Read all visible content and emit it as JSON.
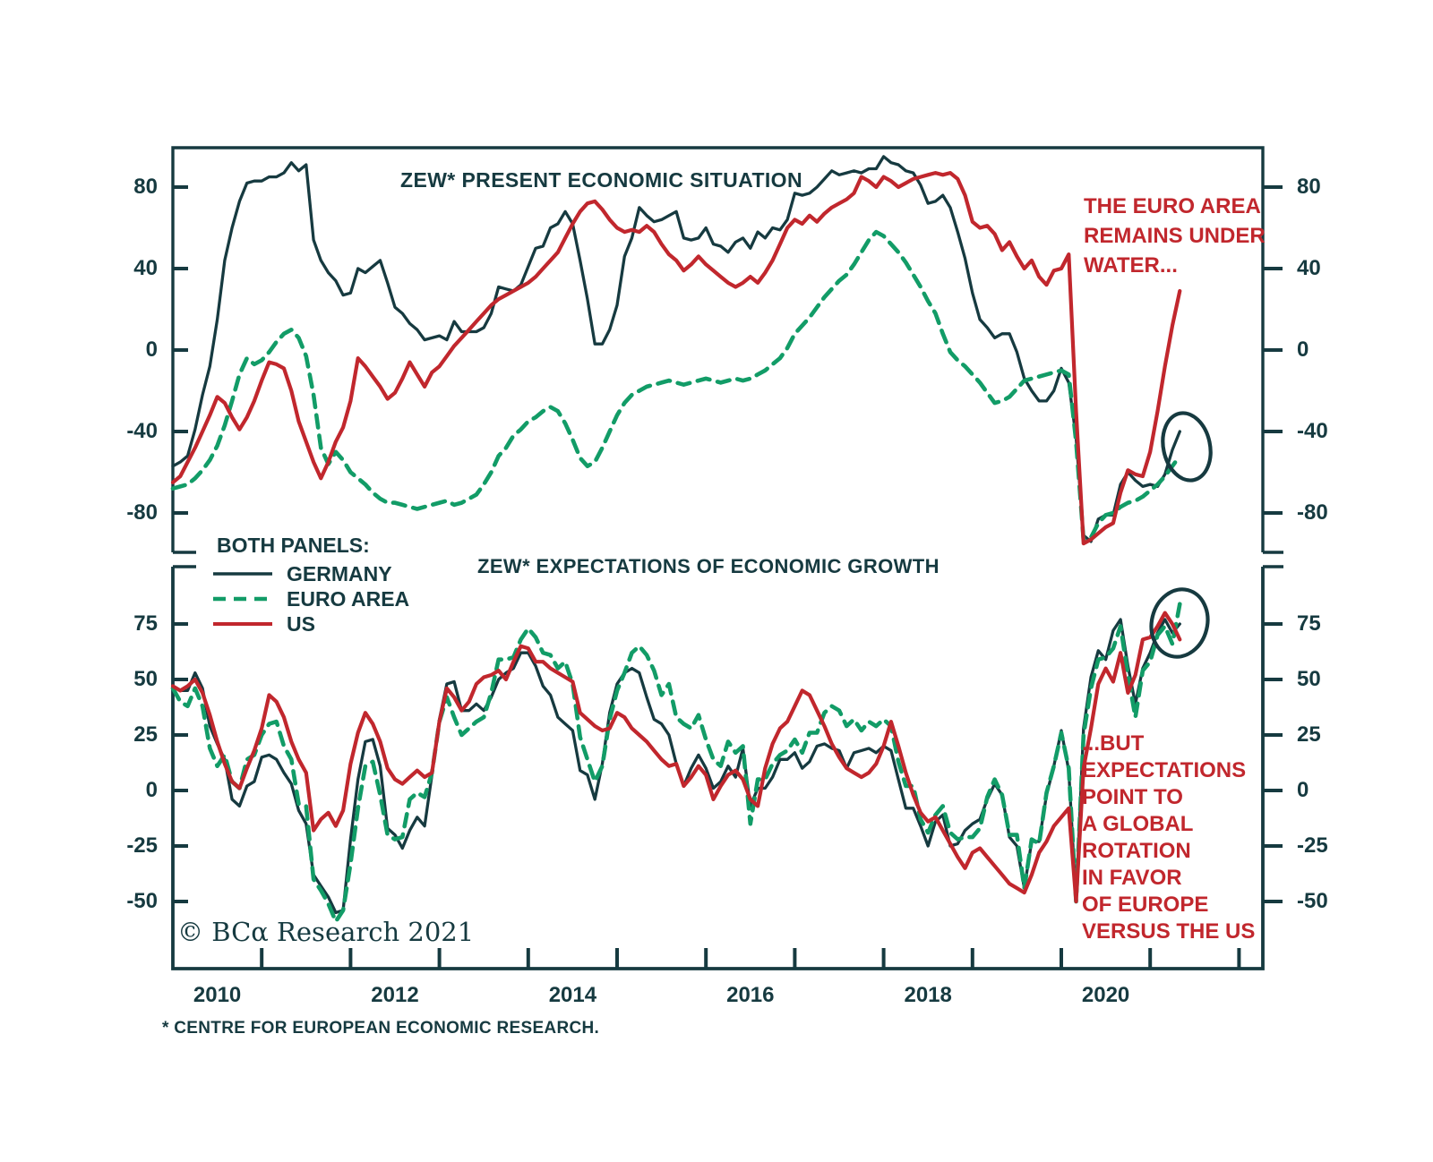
{
  "colors": {
    "background": "#ffffff",
    "axis": "#163a40",
    "text": "#163a40",
    "germany": "#163a40",
    "euro_area": "#129c67",
    "us": "#c1272d",
    "annotation_red": "#c1272d"
  },
  "legend": {
    "title": "BOTH PANELS:",
    "items": [
      {
        "label": "GERMANY",
        "style": "solid",
        "color_key": "germany"
      },
      {
        "label": "EURO AREA",
        "style": "dashed",
        "color_key": "euro_area"
      },
      {
        "label": "US",
        "style": "solid",
        "color_key": "us"
      }
    ]
  },
  "annotations": {
    "top": "THE EURO AREA\nREMAINS UNDER\nWATER...",
    "bottom": "...BUT\nEXPECTATIONS\nPOINT TO\nA GLOBAL\nROTATION\nIN FAVOR\nOF EUROPE\nVERSUS THE US"
  },
  "watermark": "© BCα Research 2021",
  "footnote": "* CENTRE FOR EUROPEAN ECONOMIC RESEARCH.",
  "x_axis": {
    "tick_years": [
      2011,
      2012,
      2013,
      2014,
      2015,
      2016,
      2017,
      2018,
      2019,
      2020,
      2021,
      2022
    ],
    "labels": [
      {
        "text": "2010",
        "year_center": 2010.5
      },
      {
        "text": "2012",
        "year_center": 2012.5
      },
      {
        "text": "2014",
        "year_center": 2014.5
      },
      {
        "text": "2016",
        "year_center": 2016.5
      },
      {
        "text": "2018",
        "year_center": 2018.5
      },
      {
        "text": "2020",
        "year_center": 2020.5
      }
    ]
  },
  "chart_data": [
    {
      "type": "line",
      "title": "ZEW* PRESENT ECONOMIC SITUATION",
      "x_start_year": 2010,
      "x_step_months": 1,
      "x_domain": [
        2010,
        2022.27
      ],
      "ylim": [
        -99,
        99
      ],
      "grid": false,
      "y_ticks": [
        80,
        40,
        0,
        -40,
        -80
      ],
      "series": [
        {
          "name": "GERMANY",
          "color_key": "germany",
          "dash": false,
          "values": [
            -57,
            -55,
            -52,
            -39,
            -22,
            -8,
            15,
            44,
            60,
            73,
            82,
            83,
            83,
            85,
            85,
            87,
            92,
            88,
            91,
            54,
            44,
            38,
            34,
            27,
            28,
            40,
            38,
            41,
            44,
            33,
            21,
            18,
            13,
            10,
            5,
            6,
            7,
            5,
            14,
            9,
            9,
            9,
            11,
            18,
            31,
            30,
            29,
            32,
            41,
            50,
            51,
            60,
            62,
            68,
            62,
            44,
            25,
            3,
            3,
            10,
            22,
            46,
            55,
            70,
            66,
            63,
            64,
            66,
            68,
            55,
            54,
            55,
            60,
            52,
            51,
            48,
            53,
            55,
            50,
            58,
            55,
            60,
            59,
            64,
            77,
            76,
            77,
            80,
            84,
            88,
            86,
            87,
            88,
            87,
            89,
            89,
            95,
            92,
            91,
            88,
            87,
            81,
            72,
            73,
            76,
            70,
            58,
            45,
            28,
            15,
            11,
            6,
            8,
            8,
            -1,
            -14,
            -20,
            -25,
            -25,
            -20,
            -9,
            -16,
            -43,
            -91,
            -94,
            -83,
            -81,
            -81,
            -66,
            -60,
            -64,
            -67,
            -66,
            -67,
            -61,
            -49,
            -40
          ]
        },
        {
          "name": "EURO AREA",
          "color_key": "euro_area",
          "dash": true,
          "values": [
            -68,
            -67,
            -66,
            -63,
            -59,
            -54,
            -47,
            -37,
            -25,
            -12,
            -4,
            -7,
            -5,
            -1,
            4,
            8,
            10,
            6,
            -3,
            -22,
            -48,
            -56,
            -50,
            -54,
            -60,
            -63,
            -66,
            -70,
            -73,
            -75,
            -75,
            -76,
            -77,
            -78,
            -77,
            -76,
            -75,
            -74,
            -76,
            -75,
            -73,
            -71,
            -66,
            -60,
            -52,
            -48,
            -42,
            -39,
            -35,
            -33,
            -30,
            -28,
            -30,
            -36,
            -44,
            -53,
            -57,
            -55,
            -48,
            -40,
            -32,
            -26,
            -22,
            -20,
            -18,
            -17,
            -16,
            -15,
            -16,
            -17,
            -16,
            -15,
            -14,
            -15,
            -16,
            -15,
            -14,
            -15,
            -14,
            -12,
            -10,
            -7,
            -4,
            1,
            8,
            12,
            16,
            21,
            26,
            30,
            34,
            37,
            42,
            48,
            54,
            58,
            56,
            52,
            48,
            43,
            37,
            31,
            24,
            18,
            8,
            -1,
            -5,
            -8,
            -12,
            -16,
            -21,
            -26,
            -25,
            -23,
            -19,
            -15,
            -14,
            -13,
            -12,
            -11,
            -10,
            -12,
            -45,
            -93,
            -92,
            -85,
            -81,
            -80,
            -77,
            -75,
            -74,
            -72,
            -69,
            -66,
            -62,
            -57,
            -52
          ]
        },
        {
          "name": "US",
          "color_key": "us",
          "dash": false,
          "values": [
            -65,
            -62,
            -55,
            -48,
            -40,
            -32,
            -23,
            -26,
            -33,
            -39,
            -33,
            -25,
            -15,
            -6,
            -7,
            -9,
            -20,
            -35,
            -45,
            -55,
            -63,
            -55,
            -45,
            -38,
            -25,
            -4,
            -8,
            -13,
            -18,
            -24,
            -21,
            -14,
            -6,
            -12,
            -18,
            -11,
            -8,
            -3,
            2,
            6,
            10,
            14,
            18,
            22,
            25,
            27,
            29,
            31,
            33,
            36,
            40,
            44,
            48,
            55,
            62,
            68,
            72,
            73,
            69,
            64,
            60,
            58,
            59,
            58,
            61,
            58,
            52,
            47,
            44,
            39,
            42,
            46,
            42,
            39,
            36,
            33,
            31,
            33,
            36,
            33,
            38,
            44,
            52,
            60,
            64,
            62,
            66,
            63,
            67,
            70,
            72,
            74,
            77,
            85,
            83,
            80,
            85,
            83,
            80,
            82,
            84,
            85,
            86,
            87,
            86,
            87,
            84,
            76,
            63,
            60,
            61,
            57,
            49,
            53,
            46,
            40,
            44,
            36,
            32,
            39,
            40,
            47,
            -30,
            -95,
            -93,
            -90,
            -87,
            -85,
            -70,
            -59,
            -61,
            -62,
            -50,
            -30,
            -8,
            12,
            29
          ]
        }
      ]
    },
    {
      "type": "line",
      "title": "ZEW* EXPECTATIONS OF ECONOMIC GROWTH",
      "x_start_year": 2010,
      "x_step_months": 1,
      "x_domain": [
        2010,
        2022.27
      ],
      "ylim": [
        -80,
        101
      ],
      "grid": false,
      "y_ticks": [
        75,
        50,
        25,
        0,
        -25,
        -50
      ],
      "series": [
        {
          "name": "GERMANY",
          "color_key": "germany",
          "dash": false,
          "values": [
            47,
            45,
            45,
            53,
            46,
            29,
            21,
            14,
            -4,
            -7,
            2,
            4,
            15,
            16,
            14,
            8,
            3,
            -9,
            -15,
            -38,
            -43,
            -48,
            -55,
            -54,
            -22,
            5,
            22,
            23,
            11,
            -17,
            -20,
            -26,
            -18,
            -12,
            -16,
            7,
            32,
            48,
            49,
            36,
            36,
            39,
            36,
            42,
            50,
            53,
            55,
            62,
            62,
            56,
            47,
            43,
            33,
            30,
            27,
            9,
            7,
            -4,
            12,
            35,
            48,
            53,
            55,
            53,
            42,
            32,
            30,
            25,
            12,
            2,
            10,
            16,
            10,
            1,
            4,
            11,
            6,
            19,
            -7,
            1,
            1,
            6,
            14,
            14,
            17,
            10,
            13,
            20,
            21,
            19,
            18,
            10,
            17,
            18,
            19,
            17,
            20,
            18,
            5,
            -8,
            -8,
            -16,
            -25,
            -14,
            -11,
            -25,
            -24,
            -18,
            -15,
            -13,
            -4,
            3,
            -2,
            -21,
            -25,
            -44,
            -23,
            -23,
            -2,
            11,
            27,
            9,
            -50,
            28,
            51,
            63,
            59,
            72,
            77,
            56,
            39,
            55,
            62,
            71,
            77,
            71,
            75
          ]
        },
        {
          "name": "EURO AREA",
          "color_key": "euro_area",
          "dash": true,
          "values": [
            46,
            40,
            38,
            46,
            38,
            19,
            11,
            16,
            4,
            1,
            14,
            16,
            25,
            30,
            31,
            20,
            14,
            -6,
            -7,
            -40,
            -45,
            -51,
            -59,
            -54,
            -33,
            -8,
            11,
            13,
            -2,
            -20,
            -22,
            -21,
            -4,
            -1,
            -3,
            8,
            31,
            42,
            33,
            25,
            28,
            31,
            33,
            44,
            59,
            59,
            60,
            68,
            73,
            69,
            62,
            61,
            55,
            58,
            48,
            24,
            14,
            4,
            11,
            32,
            45,
            53,
            62,
            65,
            61,
            54,
            43,
            48,
            33,
            30,
            28,
            34,
            23,
            14,
            11,
            22,
            17,
            20,
            -15,
            5,
            5,
            12,
            16,
            18,
            23,
            17,
            26,
            26,
            35,
            38,
            36,
            29,
            32,
            27,
            31,
            29,
            32,
            29,
            13,
            2,
            2,
            -13,
            -19,
            -11,
            -7,
            -19,
            -22,
            -21,
            -21,
            -17,
            -3,
            5,
            -2,
            -20,
            -20,
            -44,
            -22,
            -24,
            -1,
            11,
            26,
            10,
            -50,
            25,
            46,
            59,
            60,
            64,
            74,
            52,
            33,
            54,
            58,
            70,
            74,
            66,
            84
          ]
        },
        {
          "name": "US",
          "color_key": "us",
          "dash": false,
          "values": [
            47,
            45,
            47,
            50,
            44,
            34,
            22,
            12,
            4,
            1,
            10,
            18,
            28,
            43,
            40,
            33,
            22,
            14,
            8,
            -18,
            -13,
            -10,
            -16,
            -9,
            12,
            26,
            35,
            30,
            22,
            10,
            5,
            3,
            6,
            9,
            6,
            8,
            31,
            46,
            42,
            36,
            40,
            48,
            51,
            52,
            54,
            50,
            58,
            65,
            64,
            58,
            58,
            55,
            53,
            51,
            49,
            35,
            32,
            29,
            27,
            28,
            35,
            33,
            28,
            25,
            22,
            18,
            14,
            11,
            12,
            2,
            6,
            11,
            7,
            -4,
            2,
            7,
            9,
            5,
            -4,
            -7,
            10,
            21,
            28,
            31,
            38,
            45,
            43,
            36,
            29,
            21,
            15,
            10,
            8,
            6,
            8,
            12,
            20,
            31,
            20,
            8,
            -2,
            -10,
            -14,
            -12,
            -18,
            -24,
            -30,
            -35,
            -28,
            -26,
            -30,
            -34,
            -38,
            -42,
            -44,
            -46,
            -38,
            -28,
            -23,
            -16,
            -12,
            -8,
            -50,
            10,
            28,
            48,
            55,
            49,
            62,
            44,
            52,
            68,
            69,
            74,
            80,
            75,
            68
          ]
        }
      ]
    }
  ]
}
